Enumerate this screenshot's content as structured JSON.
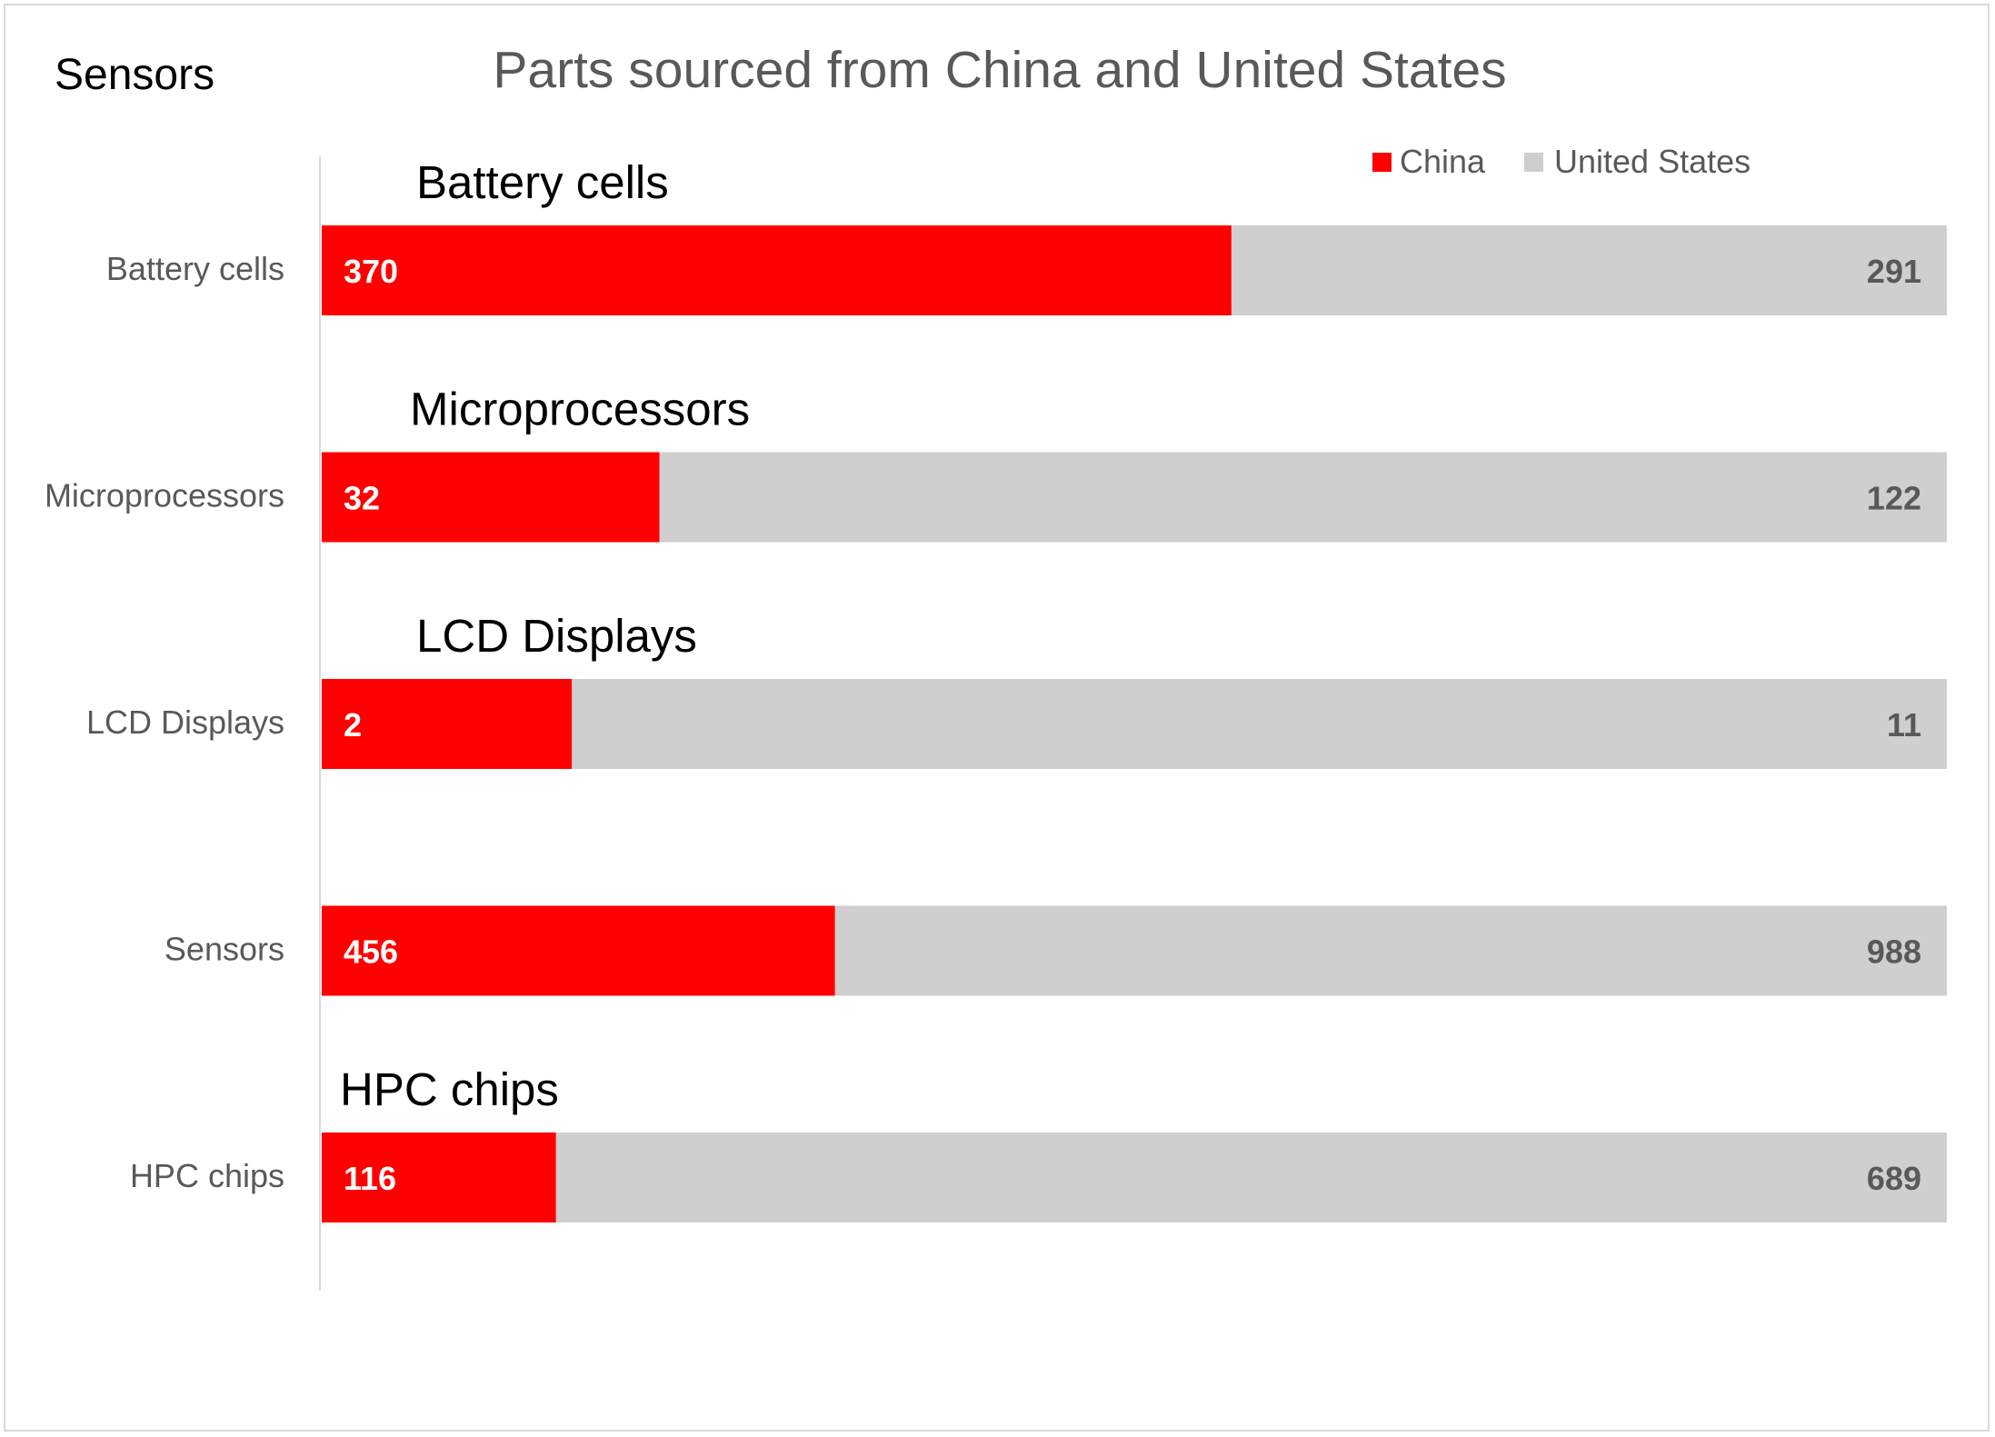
{
  "corner_label": "Sensors",
  "chart_data": {
    "type": "bar",
    "orientation": "horizontal",
    "stacked": "100%",
    "title": "Parts sourced from China and United States",
    "categories": [
      "Battery cells",
      "Microprocessors",
      "LCD Displays",
      "Sensors",
      "HPC chips"
    ],
    "bar_overlay_labels": [
      "Battery cells",
      "Microprocessors",
      "LCD Displays",
      "",
      "HPC chips"
    ],
    "series": [
      {
        "name": "China",
        "color": "#ff0000",
        "values": [
          370,
          32,
          2,
          456,
          116
        ]
      },
      {
        "name": "United States",
        "color": "#d0cece",
        "values": [
          291,
          122,
          11,
          988,
          689
        ]
      }
    ],
    "legend_position": "top-right",
    "grid": false,
    "xlim": [
      0,
      1
    ]
  }
}
